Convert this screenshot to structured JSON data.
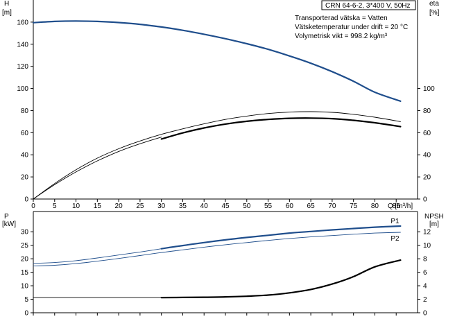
{
  "header": {
    "pump": "CRN 64-6-2, 3*400 V, 50Hz",
    "info_lines": [
      "Transporterad vätska = Vatten",
      "Vätsketemperatur under drift = 20 °C",
      "Volymetrisk vikt = 998.2 kg/m³"
    ]
  },
  "axes": {
    "top_left_label": "H",
    "top_left_unit": "[m]",
    "top_right_label": "eta",
    "top_right_unit": "[%]",
    "x_label": "Q [m³/h]",
    "bottom_left_label": "P",
    "bottom_left_unit": "[kW]",
    "bottom_right_label": "NPSH",
    "bottom_right_unit": "[m]"
  },
  "colors": {
    "blue": "#1f4e8c",
    "black": "#000000",
    "axis": "#000000"
  },
  "chart_data": [
    {
      "type": "line",
      "panel": "top",
      "xlim": [
        0,
        90
      ],
      "xticks": [
        0,
        5,
        10,
        15,
        20,
        25,
        30,
        35,
        40,
        45,
        50,
        55,
        60,
        65,
        70,
        75,
        80,
        85
      ],
      "ylim_left": [
        0,
        180
      ],
      "yticks_left": [
        0,
        20,
        40,
        60,
        80,
        100,
        120,
        140,
        160
      ],
      "ylim_right": [
        0,
        180
      ],
      "yticks_right": [
        0,
        20,
        40,
        60,
        80,
        100
      ],
      "series": [
        {
          "axis": "left",
          "color": "#1f4e8c",
          "style": "thick",
          "x": [
            0,
            5,
            10,
            15,
            20,
            25,
            30,
            35,
            40,
            45,
            50,
            55,
            60,
            65,
            70,
            75,
            80,
            86
          ],
          "y": [
            159.5,
            160.6,
            161,
            160.6,
            159.6,
            158,
            155.6,
            152.6,
            149,
            145,
            140.5,
            135.4,
            129.4,
            122.8,
            115.2,
            106.5,
            96.6,
            88.5
          ]
        },
        {
          "axis": "right",
          "color": "#000000",
          "style": "thin",
          "x": [
            0,
            5,
            10,
            15,
            20,
            25,
            30,
            35,
            40,
            45,
            50,
            55,
            60,
            65,
            70,
            75,
            80,
            86
          ],
          "y": [
            0,
            14,
            26.5,
            37,
            45.5,
            52.5,
            58.5,
            63.5,
            68,
            72,
            75,
            77.3,
            78.6,
            79,
            78.4,
            76.6,
            74,
            70
          ]
        },
        {
          "axis": "right",
          "color": "#000000",
          "style": "thin",
          "x": [
            0,
            5,
            10,
            15,
            20,
            25,
            30
          ],
          "y": [
            0,
            13,
            24.5,
            34.5,
            43,
            50,
            56
          ]
        },
        {
          "axis": "right",
          "color": "#000000",
          "style": "thick",
          "x": [
            30,
            35,
            40,
            45,
            50,
            55,
            60,
            65,
            70,
            75,
            80,
            86
          ],
          "y": [
            54.3,
            59.8,
            64.3,
            67.8,
            70.3,
            72,
            73,
            73.2,
            72.7,
            71.2,
            69,
            65.5
          ]
        }
      ]
    },
    {
      "type": "line",
      "panel": "bottom",
      "xlim": [
        0,
        90
      ],
      "xticks": [
        0,
        5,
        10,
        15,
        20,
        25,
        30,
        35,
        40,
        45,
        50,
        55,
        60,
        65,
        70,
        75,
        80,
        85
      ],
      "ylim_left": [
        0,
        37.5
      ],
      "yticks_left": [
        0,
        5,
        10,
        15,
        20,
        25,
        30
      ],
      "ylim_right": [
        0,
        15
      ],
      "yticks_right": [
        0,
        2,
        4,
        6,
        8,
        10,
        12
      ],
      "series_labels": [
        "P1",
        "P2"
      ],
      "series": [
        {
          "name": "P1",
          "axis": "left",
          "color": "#1f4e8c",
          "style": "thin",
          "x": [
            0,
            5,
            10,
            15,
            20,
            25,
            30
          ],
          "y": [
            18.3,
            18.6,
            19.3,
            20.3,
            21.4,
            22.5,
            23.7
          ]
        },
        {
          "name": "P1",
          "axis": "left",
          "color": "#1f4e8c",
          "style": "thick",
          "x": [
            30,
            35,
            40,
            45,
            50,
            55,
            60,
            65,
            70,
            75,
            80,
            86
          ],
          "y": [
            23.7,
            24.9,
            26,
            27,
            27.9,
            28.7,
            29.5,
            30.1,
            30.7,
            31.2,
            31.7,
            32.1
          ]
        },
        {
          "name": "P2",
          "axis": "left",
          "color": "#1f4e8c",
          "style": "thin",
          "x": [
            0,
            5,
            10,
            15,
            20,
            25,
            30,
            35,
            40,
            45,
            50,
            55,
            60,
            65,
            70,
            75,
            80,
            86
          ],
          "y": [
            17.3,
            17.6,
            18.2,
            19.1,
            20.1,
            21.2,
            22.3,
            23.3,
            24.3,
            25.2,
            26,
            26.8,
            27.5,
            28.1,
            28.6,
            29.1,
            29.5,
            29.8
          ]
        },
        {
          "axis": "right",
          "color": "#000000",
          "style": "thin",
          "x": [
            0,
            10,
            20,
            30
          ],
          "y": [
            2.25,
            2.25,
            2.25,
            2.25
          ]
        },
        {
          "axis": "right",
          "color": "#000000",
          "style": "thick",
          "x": [
            30,
            35,
            40,
            45,
            50,
            55,
            60,
            65,
            70,
            75,
            80,
            86
          ],
          "y": [
            2.25,
            2.27,
            2.3,
            2.35,
            2.45,
            2.62,
            2.95,
            3.45,
            4.25,
            5.35,
            6.8,
            7.8
          ]
        }
      ]
    }
  ]
}
